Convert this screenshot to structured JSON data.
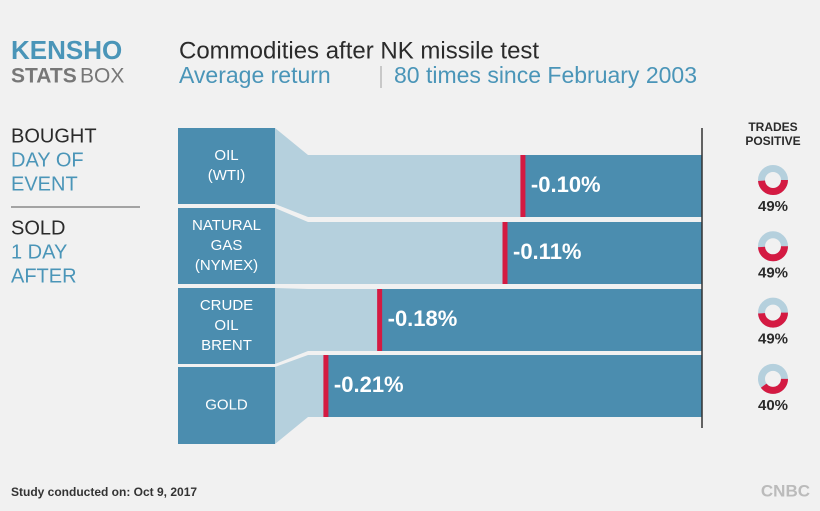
{
  "logo": {
    "top": "KENSHO",
    "bottom_left": "STATS",
    "bottom_right": "BOX"
  },
  "strategy": [
    {
      "label": "BOUGHT",
      "detail": [
        "DAY OF",
        "EVENT"
      ]
    },
    {
      "label": "SOLD",
      "detail": [
        "1 DAY",
        "AFTER"
      ]
    }
  ],
  "footer": {
    "note": "Study conducted on: Oct 9, 2017",
    "source": "CNBC"
  },
  "chart_data": {
    "type": "bar",
    "orientation": "horizontal",
    "title": "Commodities after NK missile test",
    "subtitle": [
      "Average return",
      "80 times since February 2003"
    ],
    "categories": [
      [
        "OIL",
        "(WTI)"
      ],
      [
        "NATURAL",
        "GAS",
        "(NYMEX)"
      ],
      [
        "CRUDE",
        "OIL",
        "BRENT"
      ],
      [
        "GOLD"
      ]
    ],
    "values": [
      -0.1,
      -0.11,
      -0.18,
      -0.21
    ],
    "value_labels": [
      "-0.10%",
      "-0.11%",
      "-0.18%",
      "-0.21%"
    ],
    "xlim": [
      -0.22,
      0
    ],
    "color": "#4b8daf",
    "background_color": "#b5d0dd",
    "marker_color": "#d41a42",
    "trades_positive": {
      "title": [
        "TRADES",
        "POSITIVE"
      ],
      "type": "donut",
      "values": [
        49,
        49,
        49,
        40
      ],
      "value_labels": [
        "49%",
        "49%",
        "49%",
        "40%"
      ],
      "color": "#d41a42",
      "rest_color": "#b5d0dd"
    }
  }
}
